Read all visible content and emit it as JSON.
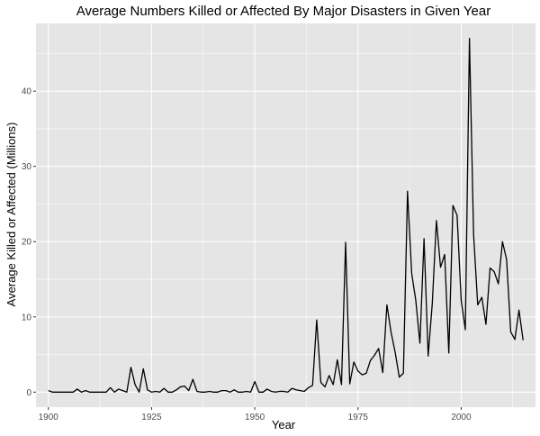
{
  "chart_data": {
    "type": "line",
    "title": "Average Numbers Killed or Affected By Major Disasters in Given Year",
    "xlabel": "Year",
    "ylabel": "Average Killed or Affected (Millions)",
    "xlim": [
      1897,
      2018
    ],
    "ylim": [
      -2,
      49
    ],
    "x_ticks": [
      1900,
      1925,
      1950,
      1975,
      2000
    ],
    "y_ticks": [
      0,
      10,
      20,
      30,
      40
    ],
    "grid": true,
    "background": "#e5e5e5",
    "grid_color": "#ffffff",
    "line_color": "#000000",
    "series": [
      {
        "x": [
          1900,
          1901,
          1902,
          1903,
          1904,
          1905,
          1906,
          1907,
          1908,
          1909,
          1910,
          1911,
          1912,
          1913,
          1914,
          1915,
          1916,
          1917,
          1918,
          1919,
          1920,
          1921,
          1922,
          1923,
          1924,
          1925,
          1926,
          1927,
          1928,
          1929,
          1930,
          1931,
          1932,
          1933,
          1934,
          1935,
          1936,
          1937,
          1938,
          1939,
          1940,
          1941,
          1942,
          1943,
          1944,
          1945,
          1946,
          1947,
          1948,
          1949,
          1950,
          1951,
          1952,
          1953,
          1954,
          1955,
          1956,
          1957,
          1958,
          1959,
          1960,
          1961,
          1962,
          1963,
          1964,
          1965,
          1966,
          1967,
          1968,
          1969,
          1970,
          1971,
          1972,
          1973,
          1974,
          1975,
          1976,
          1977,
          1978,
          1979,
          1980,
          1981,
          1982,
          1983,
          1984,
          1985,
          1986,
          1987,
          1988,
          1989,
          1990,
          1991,
          1992,
          1993,
          1994,
          1995,
          1996,
          1997,
          1998,
          1999,
          2000,
          2001,
          2002,
          2003,
          2004,
          2005,
          2006,
          2007,
          2008,
          2009,
          2010,
          2011,
          2012,
          2013,
          2014,
          2015
        ],
        "y": [
          0.2,
          0.0,
          0.0,
          0.0,
          0.0,
          0.0,
          0.0,
          0.4,
          0.0,
          0.2,
          0.0,
          0.0,
          0.0,
          0.0,
          0.0,
          0.6,
          0.0,
          0.4,
          0.2,
          0.0,
          3.3,
          1.0,
          0.0,
          3.1,
          0.3,
          0.0,
          0.1,
          0.0,
          0.5,
          0.0,
          0.0,
          0.3,
          0.7,
          0.8,
          0.2,
          1.7,
          0.1,
          0.0,
          0.0,
          0.1,
          0.0,
          0.0,
          0.2,
          0.2,
          0.0,
          0.3,
          0.0,
          0.0,
          0.1,
          0.0,
          1.4,
          0.0,
          0.0,
          0.4,
          0.1,
          0.0,
          0.1,
          0.1,
          0.0,
          0.5,
          0.3,
          0.2,
          0.1,
          0.6,
          0.9,
          9.6,
          1.3,
          0.7,
          2.2,
          1.0,
          4.3,
          1.0,
          19.9,
          1.1,
          4.0,
          2.8,
          2.3,
          2.5,
          4.2,
          4.9,
          5.8,
          2.6,
          11.6,
          8.0,
          5.3,
          2.0,
          2.5,
          26.7,
          15.8,
          12.2,
          6.5,
          20.4,
          4.8,
          11.8,
          22.8,
          16.6,
          18.3,
          5.2,
          24.8,
          23.5,
          12.2,
          8.3,
          47.0,
          21.0,
          11.6,
          12.6,
          9.0,
          16.5,
          16.0,
          14.4,
          20.0,
          17.6,
          8.0,
          7.0,
          10.9,
          6.9
        ]
      }
    ]
  }
}
